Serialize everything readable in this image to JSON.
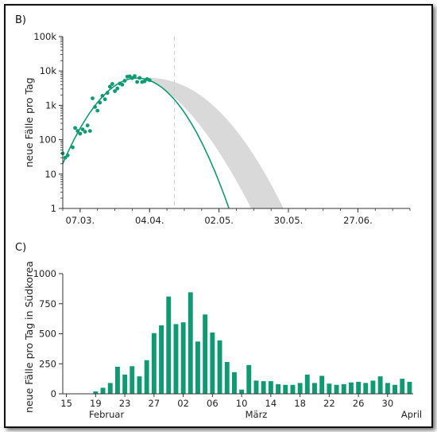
{
  "colors": {
    "accent": "#0f9a73",
    "band": "#d9d9d9",
    "axis": "#333333",
    "dashed": "#cccccc"
  },
  "chart_data": [
    {
      "panel_label": "B)",
      "type": "scatter",
      "ylabel": "neue Fälle pro Tag",
      "yscale": "log",
      "y_ticks": [
        1,
        10,
        100,
        1000,
        10000,
        100000
      ],
      "y_tick_labels": [
        "1",
        "10",
        "100",
        "1k",
        "10k",
        "100k"
      ],
      "x_ticks": [
        "07.03.",
        "04.04.",
        "02.05.",
        "30.05.",
        "27.06."
      ],
      "x_tick_days": [
        7,
        35,
        63,
        91,
        119
      ],
      "x_range_days": [
        0,
        140
      ],
      "ylim": [
        1,
        100000
      ],
      "dashed_line_day": 45,
      "series": [
        {
          "kind": "points",
          "days": [
            0,
            1,
            2,
            4,
            5,
            6,
            7,
            8,
            9,
            10,
            11,
            12,
            13,
            14,
            15,
            16,
            17,
            18,
            19,
            20,
            21,
            22,
            23,
            24,
            25,
            26,
            27,
            28,
            29,
            30,
            31,
            32,
            33,
            34,
            35
          ],
          "values": [
            40,
            30,
            35,
            60,
            220,
            180,
            150,
            200,
            170,
            260,
            180,
            1600,
            900,
            700,
            1200,
            1900,
            1500,
            2300,
            3500,
            4200,
            2600,
            3100,
            4300,
            4000,
            5200,
            6800,
            7000,
            6200,
            7100,
            4800,
            6300,
            4800,
            5000,
            5800,
            5400
          ]
        },
        {
          "kind": "fit",
          "peak_day": 30,
          "peak_value": 6200,
          "start_value": 20
        },
        {
          "kind": "band",
          "lower_end_day": 76,
          "upper_end_day": 89
        }
      ]
    },
    {
      "panel_label": "C)",
      "type": "bar",
      "ylabel": "neue Fälle pro Tag in Südkorea",
      "ylim": [
        0,
        1000
      ],
      "y_ticks": [
        0,
        250,
        500,
        750,
        1000
      ],
      "x_tick_labels": [
        "15",
        "19",
        "23",
        "27",
        "02",
        "06",
        "10",
        "14",
        "18",
        "22",
        "26",
        "30"
      ],
      "month_labels": [
        "Februar",
        "März",
        "April"
      ],
      "values": [
        0,
        0,
        0,
        0,
        20,
        50,
        90,
        225,
        160,
        230,
        145,
        280,
        505,
        570,
        810,
        580,
        595,
        845,
        435,
        660,
        510,
        445,
        265,
        180,
        35,
        240,
        110,
        105,
        105,
        80,
        75,
        75,
        90,
        160,
        90,
        150,
        85,
        75,
        80,
        95,
        100,
        90,
        110,
        145,
        90,
        75,
        125,
        100
      ]
    }
  ]
}
